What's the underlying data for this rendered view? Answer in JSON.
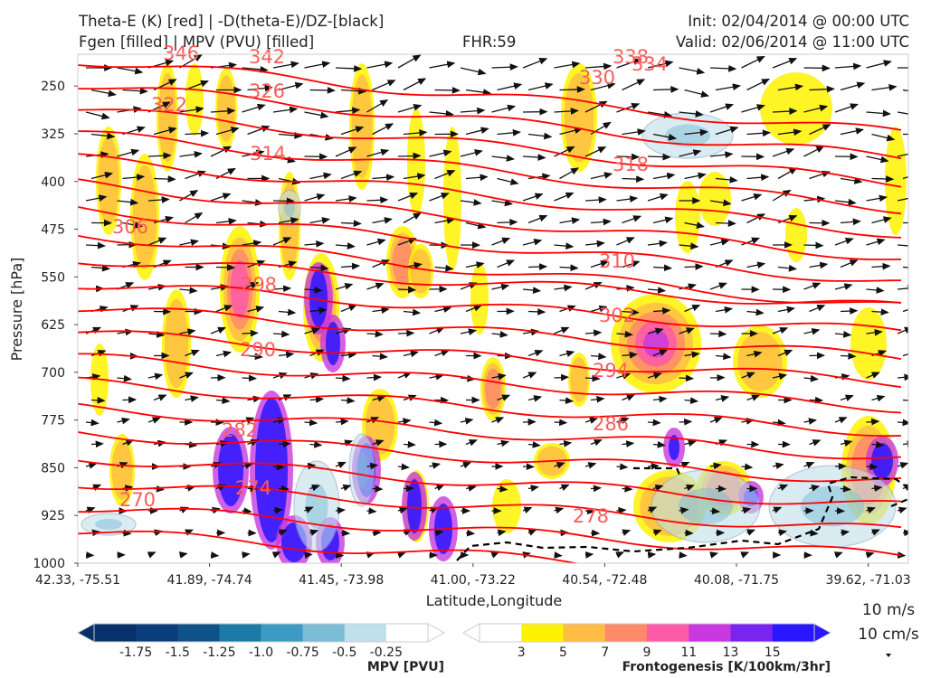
{
  "header": {
    "title_line1": "Theta-E (K) [red] | -D(theta-E)/DZ-[black]",
    "title_line2": "Fgen [filled] | MPV (PVU) [filled]",
    "fhr": "FHR:59",
    "init": "Init: 02/04/2014 @ 00:00 UTC",
    "valid": "Valid: 02/06/2014 @ 11:00 UTC"
  },
  "chart_data": {
    "type": "cross-section",
    "xlabel": "Latitude,Longitude",
    "ylabel": "Pressure [hPa]",
    "x_ticks": [
      "42.33, -75.51",
      "41.89, -74.74",
      "41.45, -73.98",
      "41.00, -73.22",
      "40.54, -72.48",
      "40.08, -71.75",
      "39.62, -71.03"
    ],
    "y_ticks": [
      "250",
      "325",
      "400",
      "475",
      "550",
      "625",
      "700",
      "775",
      "850",
      "925",
      "1000"
    ],
    "ylim": [
      1000,
      200
    ],
    "theta_e_label_values": [
      "346",
      "342",
      "338",
      "334",
      "330",
      "326",
      "322",
      "318",
      "314",
      "310",
      "306",
      "302",
      "298",
      "294",
      "290",
      "286",
      "282",
      "278",
      "274",
      "270"
    ],
    "colors": {
      "theta_e": "#ff0000",
      "theta_e_label": "#ff5a5a",
      "ddz": "#000000",
      "mpv_outline": "#8fa3c8"
    },
    "mpv_colorbar": {
      "title": "MPV [PVU]",
      "tick_labels": [
        "-1.75",
        "-1.5",
        "-1.25",
        "-1.0",
        "-0.75",
        "-0.5",
        "-0.25"
      ],
      "colors": [
        "#08306b",
        "#0b3d7a",
        "#0f5285",
        "#1c7aa6",
        "#3d9bc3",
        "#7cbcd6",
        "#bfe0ea",
        "#ffffff"
      ]
    },
    "fgen_colorbar": {
      "title": "Frontogenesis [K/100km/3hr]",
      "tick_labels": [
        "3",
        "5",
        "7",
        "9",
        "11",
        "13",
        "15"
      ],
      "colors": [
        "#ffffff",
        "#fff200",
        "#ffbd45",
        "#ff8a6a",
        "#ff5aa8",
        "#c83ae0",
        "#7a24f0",
        "#2a16ff"
      ]
    },
    "reference_vectors": [
      "10 m/s",
      "10 cm/s"
    ]
  }
}
